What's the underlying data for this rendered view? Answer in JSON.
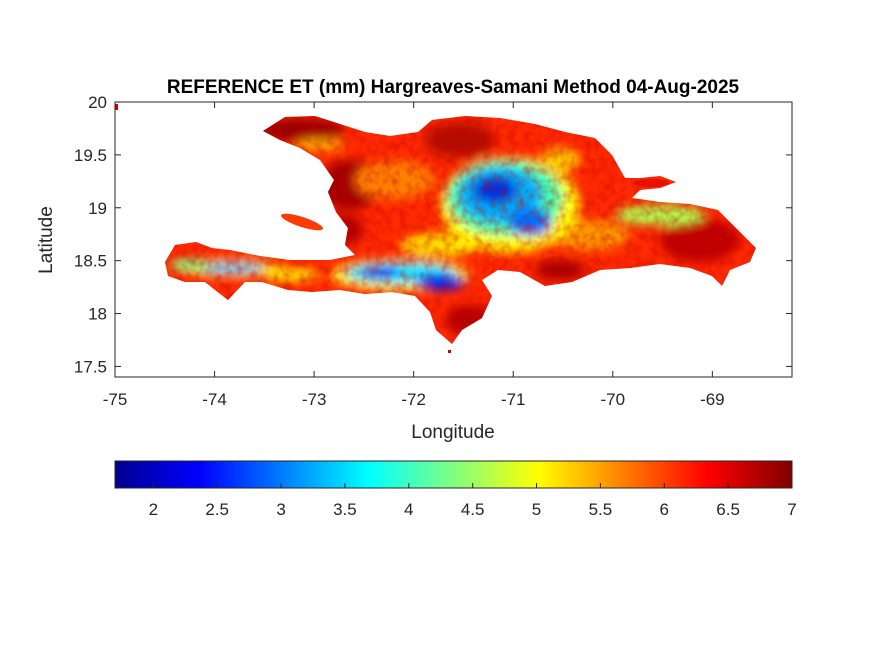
{
  "figure": {
    "title": "REFERENCE ET (mm) Hargreaves-Samani Method  04-Aug-2025",
    "xlabel": "Longitude",
    "ylabel": "Latitude",
    "x_range": [
      -75,
      -68.2
    ],
    "y_range": [
      17.4,
      20
    ],
    "x_ticks": [
      "-75",
      "-74",
      "-73",
      "-72",
      "-71",
      "-70",
      "-69"
    ],
    "y_ticks": [
      "20",
      "19.5",
      "19",
      "18.5",
      "18",
      "17.5"
    ]
  },
  "colorbar": {
    "colormap": "jet",
    "range": [
      1.7,
      7
    ],
    "ticks": [
      "2",
      "2.5",
      "3",
      "3.5",
      "4",
      "4.5",
      "5",
      "5.5",
      "6",
      "6.5",
      "7"
    ]
  },
  "map": {
    "region": "Hispaniola",
    "colors": {
      "dominant": "#ff2a00",
      "low": "#0020ff",
      "high": "#800000"
    }
  }
}
